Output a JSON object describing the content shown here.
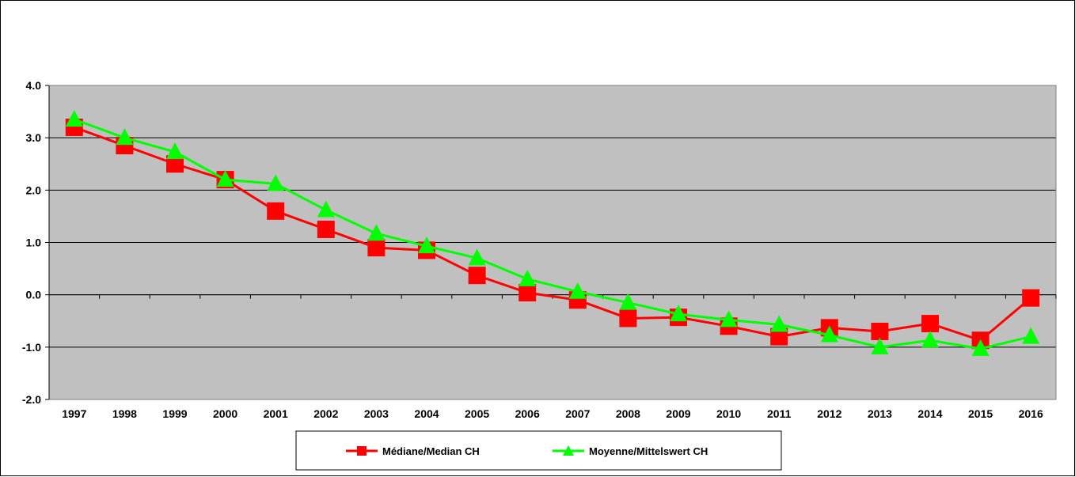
{
  "chart_data": {
    "type": "line",
    "title": "",
    "xlabel": "",
    "ylabel": "",
    "categories": [
      "1997",
      "1998",
      "1999",
      "2000",
      "2001",
      "2002",
      "2003",
      "2004",
      "2005",
      "2006",
      "2007",
      "2008",
      "2009",
      "2010",
      "2011",
      "2012",
      "2013",
      "2014",
      "2015",
      "2016"
    ],
    "ylim": [
      -2.0,
      4.0
    ],
    "yticks": [
      "4.0",
      "3.0",
      "2.0",
      "1.0",
      "0.0",
      "-1.0",
      "-2.0"
    ],
    "grid": true,
    "legend_position": "bottom",
    "series": [
      {
        "name": "Médiane/Median CH",
        "color": "#ff0000",
        "marker": "square",
        "values": [
          3.2,
          2.85,
          2.5,
          2.2,
          1.6,
          1.25,
          0.9,
          0.85,
          0.37,
          0.04,
          -0.1,
          -0.45,
          -0.43,
          -0.6,
          -0.8,
          -0.63,
          -0.7,
          -0.55,
          -0.87,
          -0.06
        ]
      },
      {
        "name": "Moyenne/Mittelswert CH",
        "color": "#00ff00",
        "marker": "triangle",
        "values": [
          3.35,
          3.0,
          2.73,
          2.2,
          2.12,
          1.62,
          1.17,
          0.93,
          0.7,
          0.3,
          0.06,
          -0.15,
          -0.37,
          -0.48,
          -0.57,
          -0.77,
          -1.0,
          -0.87,
          -1.03,
          -0.8
        ]
      }
    ]
  }
}
